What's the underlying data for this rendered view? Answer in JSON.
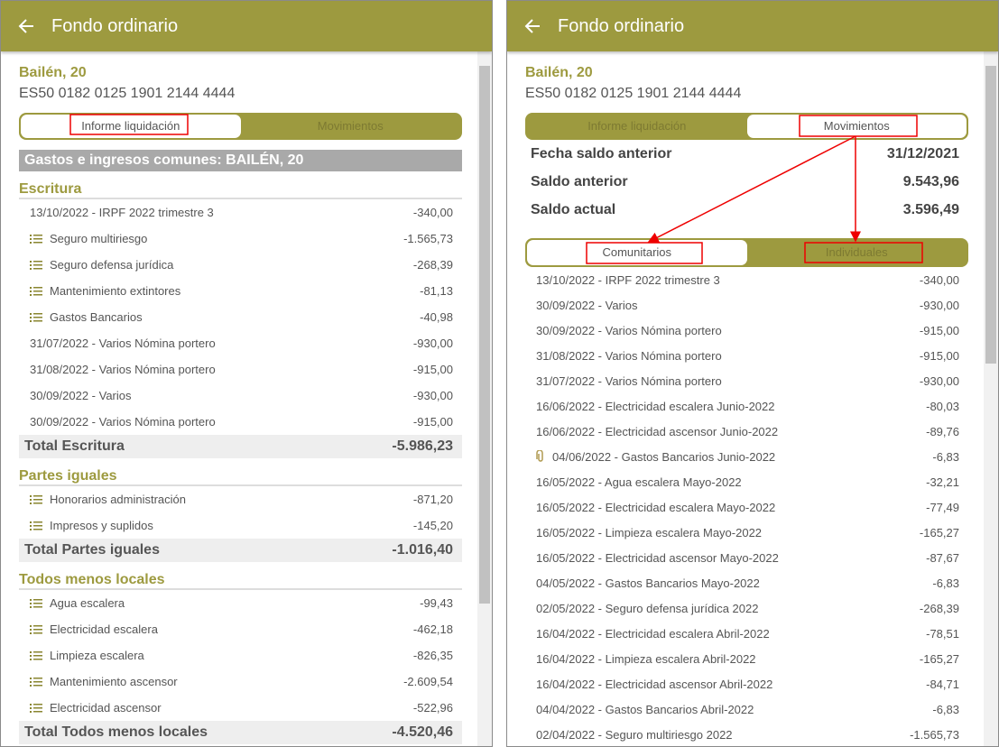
{
  "panels": [
    {
      "header": {
        "title": "Fondo ordinario"
      },
      "building": "Bailén, 20",
      "iban": "ES50 0182 0125 1901 2144 4444",
      "tabs": [
        "Informe liquidación",
        "Movimientos"
      ],
      "active_tab": 0,
      "section_title": "Gastos e ingresos comunes: BAILÉN, 20",
      "groups": [
        {
          "title": "Escritura",
          "rows": [
            {
              "label": "13/10/2022 - IRPF 2022 trimestre 3",
              "amount": "-340,00"
            },
            {
              "icon": "list",
              "label": "Seguro multiriesgo",
              "amount": "-1.565,73"
            },
            {
              "icon": "list",
              "label": "Seguro defensa jurídica",
              "amount": "-268,39"
            },
            {
              "icon": "list",
              "label": "Mantenimiento extintores",
              "amount": "-81,13"
            },
            {
              "icon": "list",
              "label": "Gastos Bancarios",
              "amount": "-40,98"
            },
            {
              "label": "31/07/2022 - Varios Nómina portero",
              "amount": "-930,00"
            },
            {
              "label": "31/08/2022 - Varios Nómina portero",
              "amount": "-915,00"
            },
            {
              "label": "30/09/2022 - Varios",
              "amount": "-930,00"
            },
            {
              "label": "30/09/2022 - Varios Nómina portero",
              "amount": "-915,00"
            }
          ],
          "total": {
            "label": "Total Escritura",
            "amount": "-5.986,23"
          }
        },
        {
          "title": "Partes iguales",
          "rows": [
            {
              "icon": "list",
              "label": "Honorarios administración",
              "amount": "-871,20"
            },
            {
              "icon": "list",
              "label": "Impresos y suplidos",
              "amount": "-145,20"
            }
          ],
          "total": {
            "label": "Total Partes iguales",
            "amount": "-1.016,40"
          }
        },
        {
          "title": "Todos menos locales",
          "rows": [
            {
              "icon": "list",
              "label": "Agua escalera",
              "amount": "-99,43"
            },
            {
              "icon": "list",
              "label": "Electricidad escalera",
              "amount": "-462,18"
            },
            {
              "icon": "list",
              "label": "Limpieza escalera",
              "amount": "-826,35"
            },
            {
              "icon": "list",
              "label": "Mantenimiento ascensor",
              "amount": "-2.609,54"
            },
            {
              "icon": "list",
              "label": "Electricidad ascensor",
              "amount": "-522,96"
            }
          ],
          "total": {
            "label": "Total Todos menos locales",
            "amount": "-4.520,46"
          }
        }
      ]
    },
    {
      "header": {
        "title": "Fondo ordinario"
      },
      "building": "Bailén, 20",
      "iban": "ES50 0182 0125 1901 2144 4444",
      "tabs": [
        "Informe liquidación",
        "Movimientos"
      ],
      "active_tab": 1,
      "summary": [
        {
          "label": "Fecha saldo anterior",
          "value": "31/12/2021"
        },
        {
          "label": "Saldo anterior",
          "value": "9.543,96"
        },
        {
          "label": "Saldo actual",
          "value": "3.596,49"
        }
      ],
      "subtabs": [
        "Comunitarios",
        "Individuales"
      ],
      "active_subtab": 0,
      "rows": [
        {
          "label": "13/10/2022 - IRPF 2022 trimestre 3",
          "amount": "-340,00"
        },
        {
          "label": "30/09/2022 - Varios",
          "amount": "-930,00"
        },
        {
          "label": "30/09/2022 - Varios Nómina portero",
          "amount": "-915,00"
        },
        {
          "label": "31/08/2022 - Varios Nómina portero",
          "amount": "-915,00"
        },
        {
          "label": "31/07/2022 - Varios Nómina portero",
          "amount": "-930,00"
        },
        {
          "label": "16/06/2022 - Electricidad escalera Junio-2022",
          "amount": "-80,03"
        },
        {
          "label": "16/06/2022 - Electricidad ascensor Junio-2022",
          "amount": "-89,76"
        },
        {
          "icon": "attachment",
          "label": "04/06/2022 - Gastos Bancarios Junio-2022",
          "amount": "-6,83"
        },
        {
          "label": "16/05/2022 - Agua escalera Mayo-2022",
          "amount": "-32,21"
        },
        {
          "label": "16/05/2022 - Electricidad escalera Mayo-2022",
          "amount": "-77,49"
        },
        {
          "label": "16/05/2022 - Limpieza escalera Mayo-2022",
          "amount": "-165,27"
        },
        {
          "label": "16/05/2022 - Electricidad ascensor Mayo-2022",
          "amount": "-87,67"
        },
        {
          "label": "04/05/2022 - Gastos Bancarios Mayo-2022",
          "amount": "-6,83"
        },
        {
          "label": "02/05/2022 - Seguro defensa jurídica 2022",
          "amount": "-268,39"
        },
        {
          "label": "16/04/2022 - Electricidad escalera Abril-2022",
          "amount": "-78,51"
        },
        {
          "label": "16/04/2022 - Limpieza escalera Abril-2022",
          "amount": "-165,27"
        },
        {
          "label": "16/04/2022 - Electricidad ascensor Abril-2022",
          "amount": "-84,71"
        },
        {
          "label": "04/04/2022 - Gastos Bancarios Abril-2022",
          "amount": "-6,83"
        },
        {
          "label": "02/04/2022 - Seguro multiriesgo 2022",
          "amount": "-1.565,73"
        }
      ]
    }
  ]
}
